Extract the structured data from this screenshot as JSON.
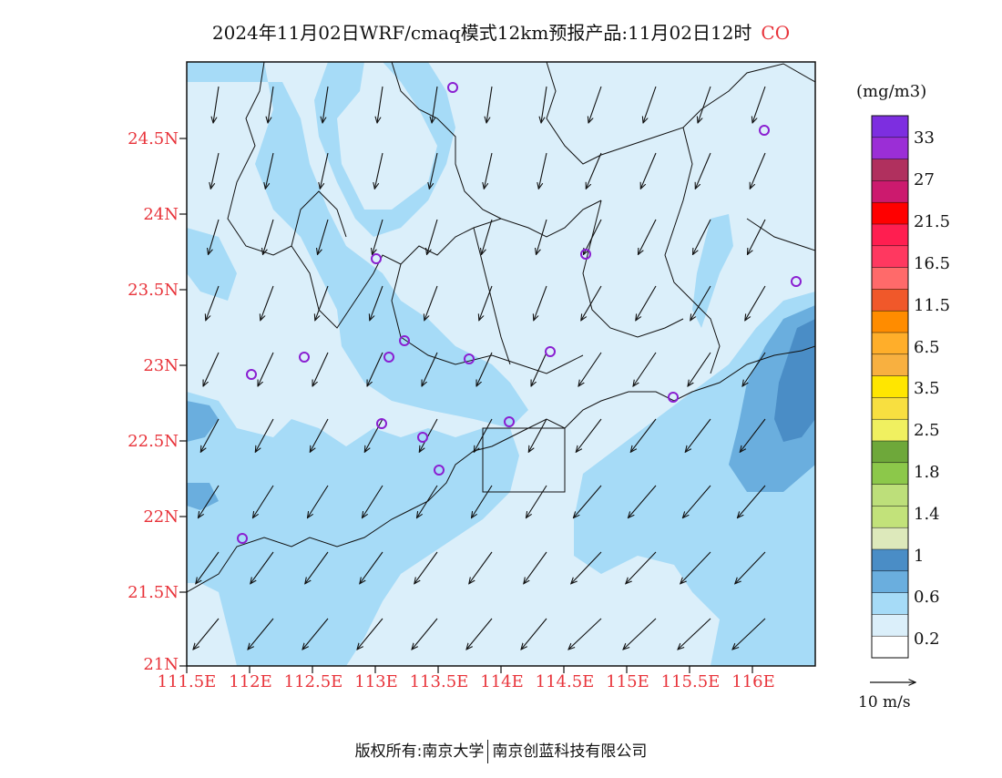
{
  "title": {
    "main": "2024年11月02日WRF/cmaq模式12km预报产品:11月02日12时",
    "species": "CO"
  },
  "colors": {
    "label_red": "#e8333a",
    "sea_background": "#dbeffa",
    "conc_level_1": "#a6dbf7",
    "conc_level_2": "#6aaede",
    "conc_level_3": "#4a8dc6",
    "station_marker": "#8a1fd1"
  },
  "map": {
    "lat_labels": [
      "24.5N",
      "24N",
      "23.5N",
      "23N",
      "22.5N",
      "22N",
      "21.5N",
      "21N"
    ],
    "lon_labels": [
      "111.5E",
      "112E",
      "112.5E",
      "113E",
      "113.5E",
      "114E",
      "114.5E",
      "115E",
      "115.5E",
      "116E"
    ]
  },
  "colorbar": {
    "unit": "(mg/m3)",
    "labels": [
      "33",
      "27",
      "21.5",
      "16.5",
      "11.5",
      "6.5",
      "3.5",
      "2.5",
      "1.8",
      "1.4",
      "1",
      "0.6",
      "0.2"
    ],
    "colors": [
      "#7d2ee0",
      "#9b2ed6",
      "#b0305e",
      "#cc1a6e",
      "#ff0000",
      "#ff1e50",
      "#ff3860",
      "#ff6a6a",
      "#f0582a",
      "#ff8c00",
      "#ffae2a",
      "#f8b040",
      "#ffe600",
      "#f8df40",
      "#f0f060",
      "#6ea83a",
      "#8cc84a",
      "#bddf7a",
      "#c2e27a",
      "#dde9bb",
      "#4a8dc6",
      "#6aaede",
      "#a6dbf7",
      "#dbeffa",
      "#ffffff"
    ]
  },
  "wind": {
    "reference_label": "10 m/s"
  },
  "footer": {
    "left": "版权所有:南京大学",
    "right": "南京创蓝科技有限公司"
  }
}
